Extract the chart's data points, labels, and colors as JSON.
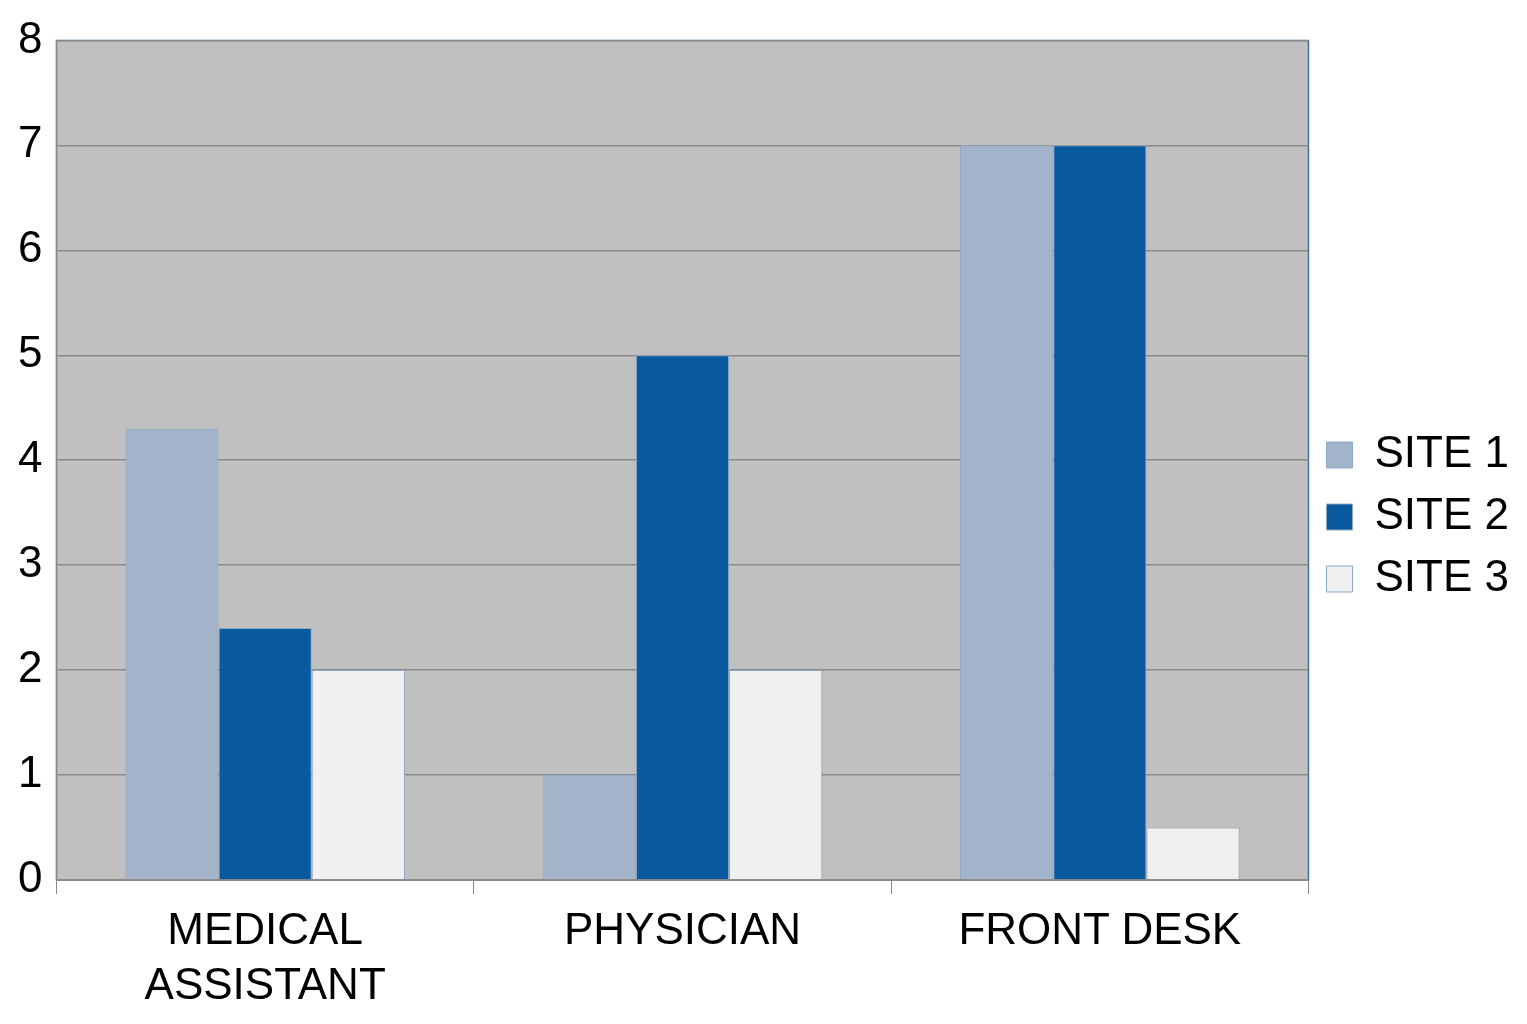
{
  "chart_data": {
    "type": "bar",
    "categories": [
      "MEDICAL ASSISTANT",
      "PHYSICIAN",
      "FRONT DESK"
    ],
    "series": [
      {
        "name": "SITE 1",
        "color": "#a3b4ca",
        "values": [
          4.3,
          1,
          7
        ]
      },
      {
        "name": "SITE 2",
        "color": "#0a5aa0",
        "values": [
          2.4,
          5,
          7
        ]
      },
      {
        "name": "SITE 3",
        "color": "#f0f0f0",
        "values": [
          2,
          2,
          0.5
        ]
      }
    ],
    "ylim": [
      0,
      8
    ],
    "yticks": [
      0,
      1,
      2,
      3,
      4,
      5,
      6,
      7,
      8
    ],
    "grid": "y",
    "legend": "right"
  }
}
